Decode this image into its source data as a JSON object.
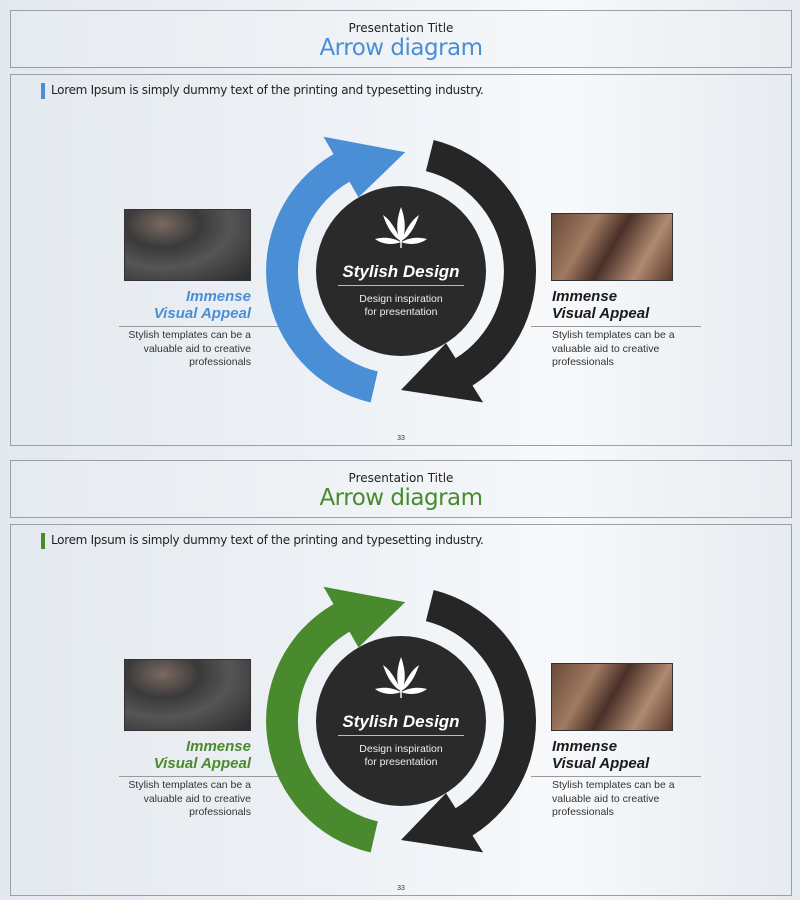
{
  "slides": [
    {
      "presentation_title": "Presentation Title",
      "title": "Arrow diagram",
      "subtitle": "Lorem Ipsum is simply  dummy text of the printing  and typesetting industry.",
      "accent": "#4a8fd6",
      "center": {
        "heading": "Stylish Design",
        "sub1": "Design inspiration",
        "sub2": "for presentation",
        "icon": "cannabis-leaf-icon"
      },
      "left": {
        "heading1": "Immense",
        "heading2": "Visual Appeal",
        "desc1": "Stylish templates can be a",
        "desc2": "valuable  aid to creative",
        "desc3": "professionals"
      },
      "right": {
        "heading1": "Immense",
        "heading2": "Visual Appeal",
        "desc1": "Stylish templates can be a",
        "desc2": "valuable  aid to creative",
        "desc3": "professionals"
      },
      "page": "33"
    },
    {
      "presentation_title": "Presentation Title",
      "title": "Arrow diagram",
      "subtitle": "Lorem Ipsum is simply  dummy text of the printing  and typesetting industry.",
      "accent": "#4a8a2e",
      "center": {
        "heading": "Stylish Design",
        "sub1": "Design inspiration",
        "sub2": "for presentation",
        "icon": "cannabis-leaf-icon"
      },
      "left": {
        "heading1": "Immense",
        "heading2": "Visual Appeal",
        "desc1": "Stylish templates can be a",
        "desc2": "valuable  aid to creative",
        "desc3": "professionals"
      },
      "right": {
        "heading1": "Immense",
        "heading2": "Visual Appeal",
        "desc1": "Stylish templates can be a",
        "desc2": "valuable  aid to creative",
        "desc3": "professionals"
      },
      "page": "33"
    }
  ],
  "colors": {
    "dark_arrow": "#262626",
    "circle": "#2a2a2a"
  }
}
